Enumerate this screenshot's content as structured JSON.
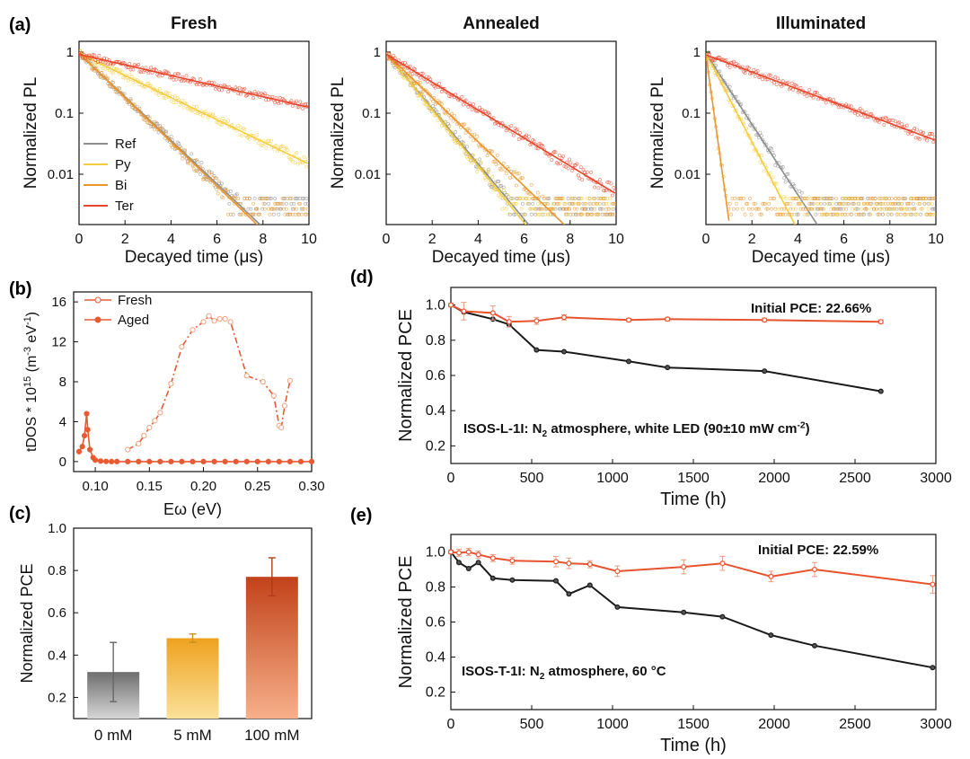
{
  "panel_labels": {
    "a": "(a)",
    "b": "(b)",
    "c": "(c)",
    "d": "(d)",
    "e": "(e)"
  },
  "colors": {
    "Ref": "#8c8c8c",
    "Py": "#f5cc3c",
    "Bi": "#e9962e",
    "Ter": "#e8452b",
    "fresh": "#f0a27e",
    "aged": "#e85a33",
    "control": "#1a1a1a",
    "target": "#e8532f"
  },
  "chart_data": [
    {
      "id": "a1",
      "type": "scatter",
      "title": "Fresh",
      "xlabel": "Decayed time (μs)",
      "ylabel": "Normalized PL",
      "xlim": [
        0,
        10
      ],
      "ylim": [
        0.0015,
        1.5
      ],
      "yscale": "log",
      "xticks": [
        0,
        2,
        4,
        6,
        8,
        10
      ],
      "yticks": [
        1,
        0.1,
        0.01
      ],
      "legend_position": "bottom-left",
      "series": [
        {
          "name": "Ref",
          "start": 0.95,
          "tau": 1.22,
          "floor": 0.001
        },
        {
          "name": "Py",
          "start": 0.95,
          "tau": 2.4,
          "floor": 0.001
        },
        {
          "name": "Bi",
          "start": 0.95,
          "tau": 1.2,
          "floor": 0.001
        },
        {
          "name": "Ter",
          "start": 0.92,
          "tau": 5.0,
          "floor": 0.001
        }
      ]
    },
    {
      "id": "a2",
      "type": "scatter",
      "title": "Annealed",
      "xlabel": "Decayed time (μs)",
      "ylabel": "Normalized PL",
      "xlim": [
        0,
        10
      ],
      "ylim": [
        0.0015,
        1.5
      ],
      "yscale": "log",
      "xticks": [
        0,
        2,
        4,
        6,
        8,
        10
      ],
      "yticks": [
        1,
        0.1,
        0.01
      ],
      "series": [
        {
          "name": "Ref",
          "start": 0.95,
          "tau": 0.96,
          "floor": 0.001
        },
        {
          "name": "Py",
          "start": 0.95,
          "tau": 0.94,
          "floor": 0.001
        },
        {
          "name": "Bi",
          "start": 0.95,
          "tau": 1.2,
          "floor": 0.001
        },
        {
          "name": "Ter",
          "start": 0.92,
          "tau": 1.9,
          "floor": 0.001
        }
      ]
    },
    {
      "id": "a3",
      "type": "scatter",
      "title": "Illuminated",
      "xlabel": "Decayed time (μs)",
      "ylabel": "Normalized PL",
      "xlim": [
        0,
        10
      ],
      "ylim": [
        0.0015,
        1.5
      ],
      "yscale": "log",
      "xticks": [
        0,
        2,
        4,
        6,
        8,
        10
      ],
      "yticks": [
        1,
        0.1,
        0.01
      ],
      "series": [
        {
          "name": "Ref",
          "start": 0.95,
          "tau": 0.75,
          "floor": 0.001
        },
        {
          "name": "Py",
          "start": 0.95,
          "tau": 0.6,
          "floor": 0.001
        },
        {
          "name": "Bi",
          "start": 0.9,
          "tau": 0.16,
          "floor": 0.001
        },
        {
          "name": "Ter",
          "start": 0.9,
          "tau": 3.1,
          "floor": 0.001
        }
      ]
    },
    {
      "id": "b",
      "type": "line",
      "xlabel": "Eω (eV)",
      "ylabel": "tDOS * 10<sup>15</sup> (m<sup>-3</sup> eV<sup>-1</sup>)",
      "xlim": [
        0.08,
        0.3
      ],
      "ylim": [
        -1,
        17
      ],
      "xticks": [
        0.1,
        0.15,
        0.2,
        0.25,
        0.3
      ],
      "yticks": [
        0,
        4,
        8,
        12,
        16
      ],
      "legend_position": "top-left",
      "series": [
        {
          "name": "Fresh",
          "x": [
            0.13,
            0.14,
            0.145,
            0.15,
            0.155,
            0.16,
            0.17,
            0.18,
            0.19,
            0.2,
            0.205,
            0.21,
            0.215,
            0.22,
            0.225,
            0.24,
            0.255,
            0.265,
            0.27,
            0.272,
            0.275,
            0.28
          ],
          "y": [
            1.2,
            1.8,
            2.6,
            3.4,
            4.1,
            4.9,
            7.8,
            11.5,
            13.2,
            14.0,
            14.6,
            14.1,
            14.3,
            14.3,
            14.0,
            8.6,
            8.0,
            6.6,
            3.6,
            3.4,
            5.6,
            8.1
          ]
        },
        {
          "name": "Aged",
          "x": [
            0.085,
            0.088,
            0.09,
            0.092,
            0.093,
            0.095,
            0.098,
            0.1,
            0.105,
            0.11,
            0.115,
            0.12,
            0.13,
            0.14,
            0.15,
            0.16,
            0.17,
            0.18,
            0.19,
            0.2,
            0.21,
            0.22,
            0.23,
            0.24,
            0.25,
            0.26,
            0.27,
            0.28,
            0.29,
            0.3
          ],
          "y": [
            1.0,
            1.5,
            2.6,
            4.8,
            3.2,
            1.2,
            0.4,
            0.15,
            0.05,
            0.02,
            0,
            0,
            0,
            0,
            0,
            0,
            0,
            0,
            0,
            0,
            0,
            0,
            0,
            0,
            0,
            0,
            0,
            0,
            0,
            0
          ]
        }
      ]
    },
    {
      "id": "c",
      "type": "bar",
      "ylabel": "Normalized PCE",
      "categories": [
        "0 mM",
        "5 mM",
        "100 mM"
      ],
      "values": [
        0.32,
        0.48,
        0.77
      ],
      "errors": [
        0.14,
        0.02,
        0.09
      ],
      "ylim": [
        0.1,
        1.0
      ],
      "yticks": [
        0.2,
        0.4,
        0.6,
        0.8,
        1.0
      ],
      "bar_colors": [
        [
          "#6e6e6e",
          "#d6d6d6"
        ],
        [
          "#eea21f",
          "#fbe19a"
        ],
        [
          "#c2421a",
          "#f7b08a"
        ]
      ]
    },
    {
      "id": "d",
      "type": "line",
      "xlabel": "Time (h)",
      "ylabel": "Normalized PCE",
      "xlim": [
        0,
        3000
      ],
      "ylim": [
        0.1,
        1.1
      ],
      "xticks": [
        0,
        500,
        1000,
        1500,
        2000,
        2500,
        3000
      ],
      "yticks": [
        0.2,
        0.4,
        0.6,
        0.8,
        1.0
      ],
      "annotation": "Initial PCE: 22.66%",
      "condition": "ISOS-L-1I: N<sub>2</sub> atmosphere, white LED (90±10 mW cm<sup>-2</sup>)",
      "series": [
        {
          "name": "control",
          "x": [
            0,
            80,
            260,
            360,
            530,
            700,
            1100,
            1340,
            1940,
            2660
          ],
          "y": [
            1.0,
            0.96,
            0.92,
            0.89,
            0.745,
            0.735,
            0.68,
            0.645,
            0.625,
            0.51
          ]
        },
        {
          "name": "target",
          "x": [
            0,
            80,
            260,
            360,
            530,
            700,
            1100,
            1340,
            1940,
            2660
          ],
          "y": [
            1.0,
            0.965,
            0.955,
            0.905,
            0.91,
            0.93,
            0.915,
            0.92,
            0.915,
            0.905
          ],
          "err": [
            0.01,
            0.05,
            0.04,
            0.03,
            0.02,
            0.015,
            0.01,
            0.01,
            0.01,
            0.01
          ]
        }
      ]
    },
    {
      "id": "e",
      "type": "line",
      "xlabel": "Time (h)",
      "ylabel": "Normalized PCE",
      "xlim": [
        0,
        3000
      ],
      "ylim": [
        0.1,
        1.1
      ],
      "xticks": [
        0,
        500,
        1000,
        1500,
        2000,
        2500,
        3000
      ],
      "yticks": [
        0.2,
        0.4,
        0.6,
        0.8,
        1.0
      ],
      "annotation": "Initial PCE: 22.59%",
      "condition": "ISOS-T-1I: N<sub>2</sub> atmosphere, 60 °C",
      "series": [
        {
          "name": "control",
          "x": [
            0,
            50,
            110,
            170,
            260,
            380,
            650,
            730,
            860,
            1030,
            1440,
            1680,
            1980,
            2250,
            2980
          ],
          "y": [
            1.0,
            0.94,
            0.905,
            0.94,
            0.85,
            0.84,
            0.835,
            0.76,
            0.81,
            0.685,
            0.655,
            0.63,
            0.525,
            0.465,
            0.34
          ]
        },
        {
          "name": "target",
          "x": [
            0,
            50,
            110,
            170,
            260,
            380,
            650,
            730,
            860,
            1030,
            1440,
            1680,
            1980,
            2250,
            2980
          ],
          "y": [
            1.0,
            0.995,
            1.0,
            0.985,
            0.965,
            0.95,
            0.945,
            0.935,
            0.93,
            0.89,
            0.915,
            0.935,
            0.86,
            0.9,
            0.815
          ],
          "err": [
            0.01,
            0.02,
            0.02,
            0.02,
            0.02,
            0.02,
            0.03,
            0.03,
            0.02,
            0.03,
            0.04,
            0.04,
            0.03,
            0.04,
            0.05
          ]
        }
      ]
    }
  ]
}
